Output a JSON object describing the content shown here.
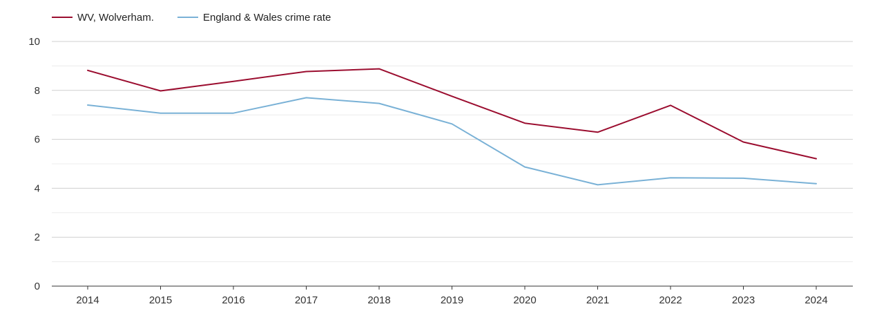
{
  "chart_data": {
    "type": "line",
    "title": "",
    "xlabel": "",
    "ylabel": "",
    "ylim": [
      0,
      10
    ],
    "yticks": [
      "0",
      "2",
      "4",
      "6",
      "8",
      "10"
    ],
    "grid": true,
    "legend_position": "top-left",
    "categories": [
      "2014",
      "2015",
      "2016",
      "2017",
      "2018",
      "2019",
      "2020",
      "2021",
      "2022",
      "2023",
      "2024"
    ],
    "series": [
      {
        "name": "WV, Wolverham.",
        "color": "#9b0d2f",
        "values": [
          8.82,
          7.98,
          8.37,
          8.77,
          8.88,
          7.76,
          6.66,
          6.29,
          7.39,
          5.89,
          5.21
        ]
      },
      {
        "name": "England & Wales crime rate",
        "color": "#79b1d6",
        "values": [
          7.4,
          7.07,
          7.07,
          7.7,
          7.47,
          6.63,
          4.87,
          4.14,
          4.43,
          4.41,
          4.19
        ]
      }
    ]
  }
}
